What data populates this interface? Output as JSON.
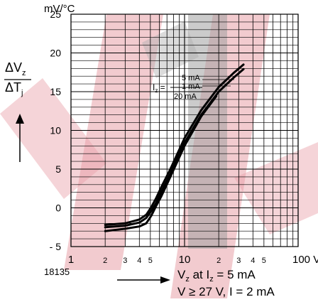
{
  "chart_data": {
    "type": "line",
    "title": "",
    "y_unit_label": "mV/°C",
    "ylabel": {
      "main": "ΔV",
      "main_sub": "z",
      "denom": "ΔT",
      "denom_sub": "j"
    },
    "xlabel": {
      "text": "V",
      "text_sub": "z",
      "mid": " at I",
      "mid_sub": "z",
      "tail": " = 5 mA"
    },
    "xlabel_line2": "V ≥ 27 V, I = 2 mA",
    "figure_number": "18135",
    "x_scale": "log",
    "xlim": [
      1,
      100
    ],
    "ylim": [
      -5,
      25
    ],
    "x_major_ticks": [
      "1",
      "10",
      "100 V"
    ],
    "x_minor_ticks": [
      "2",
      "3",
      "4",
      "5",
      "2",
      "3",
      "4",
      "5"
    ],
    "y_ticks": [
      "- 5",
      "0",
      "5",
      "10",
      "15",
      "20",
      "25"
    ],
    "grid": true,
    "annotation_label": {
      "text": "I",
      "sub": "z",
      "tail": " = "
    },
    "series": [
      {
        "name": "5 mA",
        "x": [
          2.0,
          3.0,
          4.0,
          4.6,
          5.1,
          5.6,
          6.2,
          7.5,
          10.0,
          14.0,
          20.0,
          27.0,
          33.0
        ],
        "y": [
          -2.2,
          -2.0,
          -1.5,
          -0.9,
          0.1,
          1.2,
          2.6,
          5.0,
          9.0,
          12.6,
          15.6,
          17.4,
          18.5
        ]
      },
      {
        "name": "1 mA",
        "x": [
          2.0,
          3.0,
          4.0,
          4.6,
          5.1,
          5.6,
          6.2,
          7.5,
          10.0,
          14.0,
          20.0,
          27.0,
          33.0
        ],
        "y": [
          -2.5,
          -2.3,
          -1.9,
          -1.3,
          -0.4,
          0.6,
          2.0,
          4.4,
          8.4,
          12.0,
          15.0,
          16.8,
          17.9
        ]
      },
      {
        "name": "20 mA",
        "x": [
          2.0,
          3.0,
          4.0,
          4.6,
          5.1,
          5.6,
          6.2,
          7.5,
          10.0,
          14.0,
          19.0
        ],
        "y": [
          -3.0,
          -2.7,
          -2.4,
          -2.0,
          -1.0,
          0.2,
          1.4,
          4.0,
          8.0,
          11.8,
          14.4
        ]
      }
    ]
  }
}
